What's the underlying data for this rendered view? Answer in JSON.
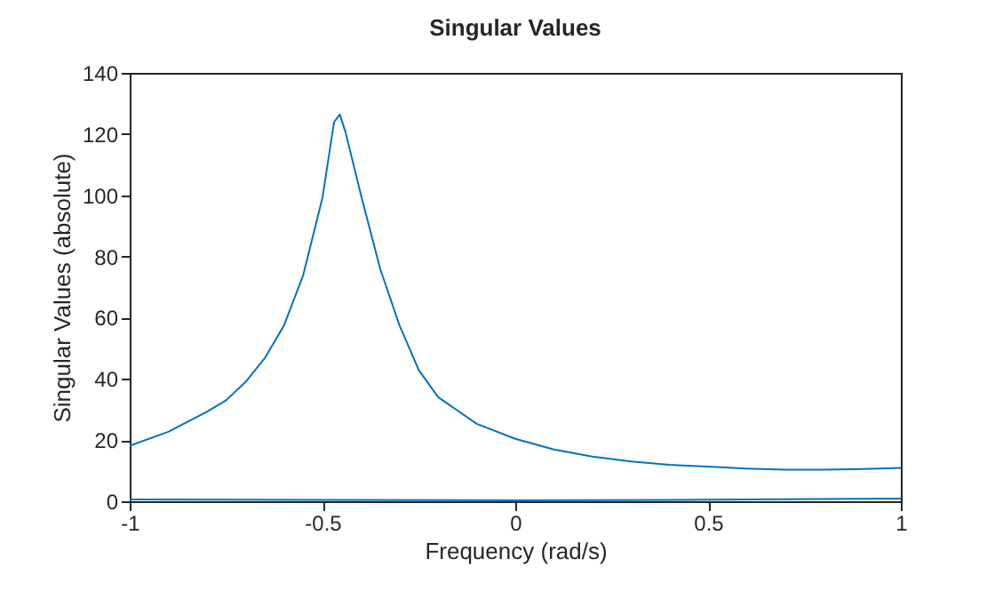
{
  "chart_data": {
    "type": "line",
    "title": "Singular Values",
    "xlabel": "Frequency (rad/s)",
    "ylabel": "Singular Values (absolute)",
    "xlim": [
      -1,
      1
    ],
    "ylim": [
      0,
      140
    ],
    "xticks": [
      -1,
      -0.5,
      0,
      0.5,
      1
    ],
    "yticks": [
      0,
      20,
      40,
      60,
      80,
      100,
      120,
      140
    ],
    "grid": false,
    "line_style": "solid",
    "series": [
      {
        "color": "#0072bd",
        "x": [
          -1,
          -0.9,
          -0.8,
          -0.75,
          -0.7,
          -0.65,
          -0.6,
          -0.55,
          -0.5,
          -0.47,
          -0.455,
          -0.44,
          -0.4,
          -0.35,
          -0.3,
          -0.25,
          -0.2,
          -0.1,
          0,
          0.1,
          0.2,
          0.3,
          0.4,
          0.5,
          0.6,
          0.7,
          0.8,
          0.9,
          1
        ],
        "values": [
          18.1,
          22.7,
          29.2,
          33,
          38.9,
          46.7,
          57.4,
          73.9,
          99.2,
          123.9,
          126.4,
          120.5,
          100,
          75.8,
          57.4,
          42.8,
          34,
          25.3,
          20.4,
          16.9,
          14.6,
          13,
          11.9,
          11.3,
          10.7,
          10.3,
          10.3,
          10.5,
          10.9
        ]
      },
      {
        "color": "#0072bd",
        "x": [
          -1,
          -0.5,
          0,
          0.5,
          1
        ],
        "values": [
          0.6,
          0.4,
          0.3,
          0.5,
          0.9
        ]
      }
    ]
  }
}
